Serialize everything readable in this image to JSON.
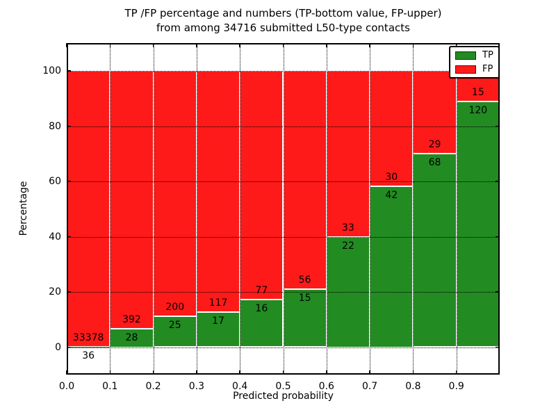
{
  "figure": {
    "title_line1": "TP /FP percentage and numbers (TP-bottom value, FP-upper)",
    "title_line2": "from among 34716 submitted L50-type contacts"
  },
  "chart_data": {
    "type": "bar",
    "stacked": true,
    "normalized_to_percent": true,
    "title": "TP /FP percentage and numbers (TP-bottom value, FP-upper) from among 34716 submitted L50-type contacts",
    "xlabel": "Predicted probability",
    "ylabel": "Percentage",
    "xlim": [
      0.0,
      1.0
    ],
    "ylim": [
      -10,
      110
    ],
    "bar_width": 0.1,
    "bin_starts": [
      0.0,
      0.1,
      0.2,
      0.3,
      0.4,
      0.5,
      0.6,
      0.7,
      0.8,
      0.9
    ],
    "xtick_labels": [
      "0.0",
      "0.1",
      "0.2",
      "0.3",
      "0.4",
      "0.5",
      "0.6",
      "0.7",
      "0.8",
      "0.9"
    ],
    "ytick_values": [
      0,
      20,
      40,
      60,
      80,
      100
    ],
    "grid": true,
    "legend_position": "upper right",
    "total_submitted": 34716,
    "series": [
      {
        "name": "TP",
        "color": "#228b22",
        "counts": [
          36,
          28,
          25,
          17,
          16,
          15,
          22,
          42,
          68,
          120
        ]
      },
      {
        "name": "FP",
        "color": "#ff1a1a",
        "counts": [
          33378,
          392,
          200,
          117,
          77,
          56,
          33,
          30,
          29,
          15
        ]
      }
    ],
    "tp_percent": [
      0.11,
      6.67,
      11.11,
      12.69,
      17.2,
      21.13,
      40.0,
      58.33,
      70.1,
      88.89
    ]
  }
}
